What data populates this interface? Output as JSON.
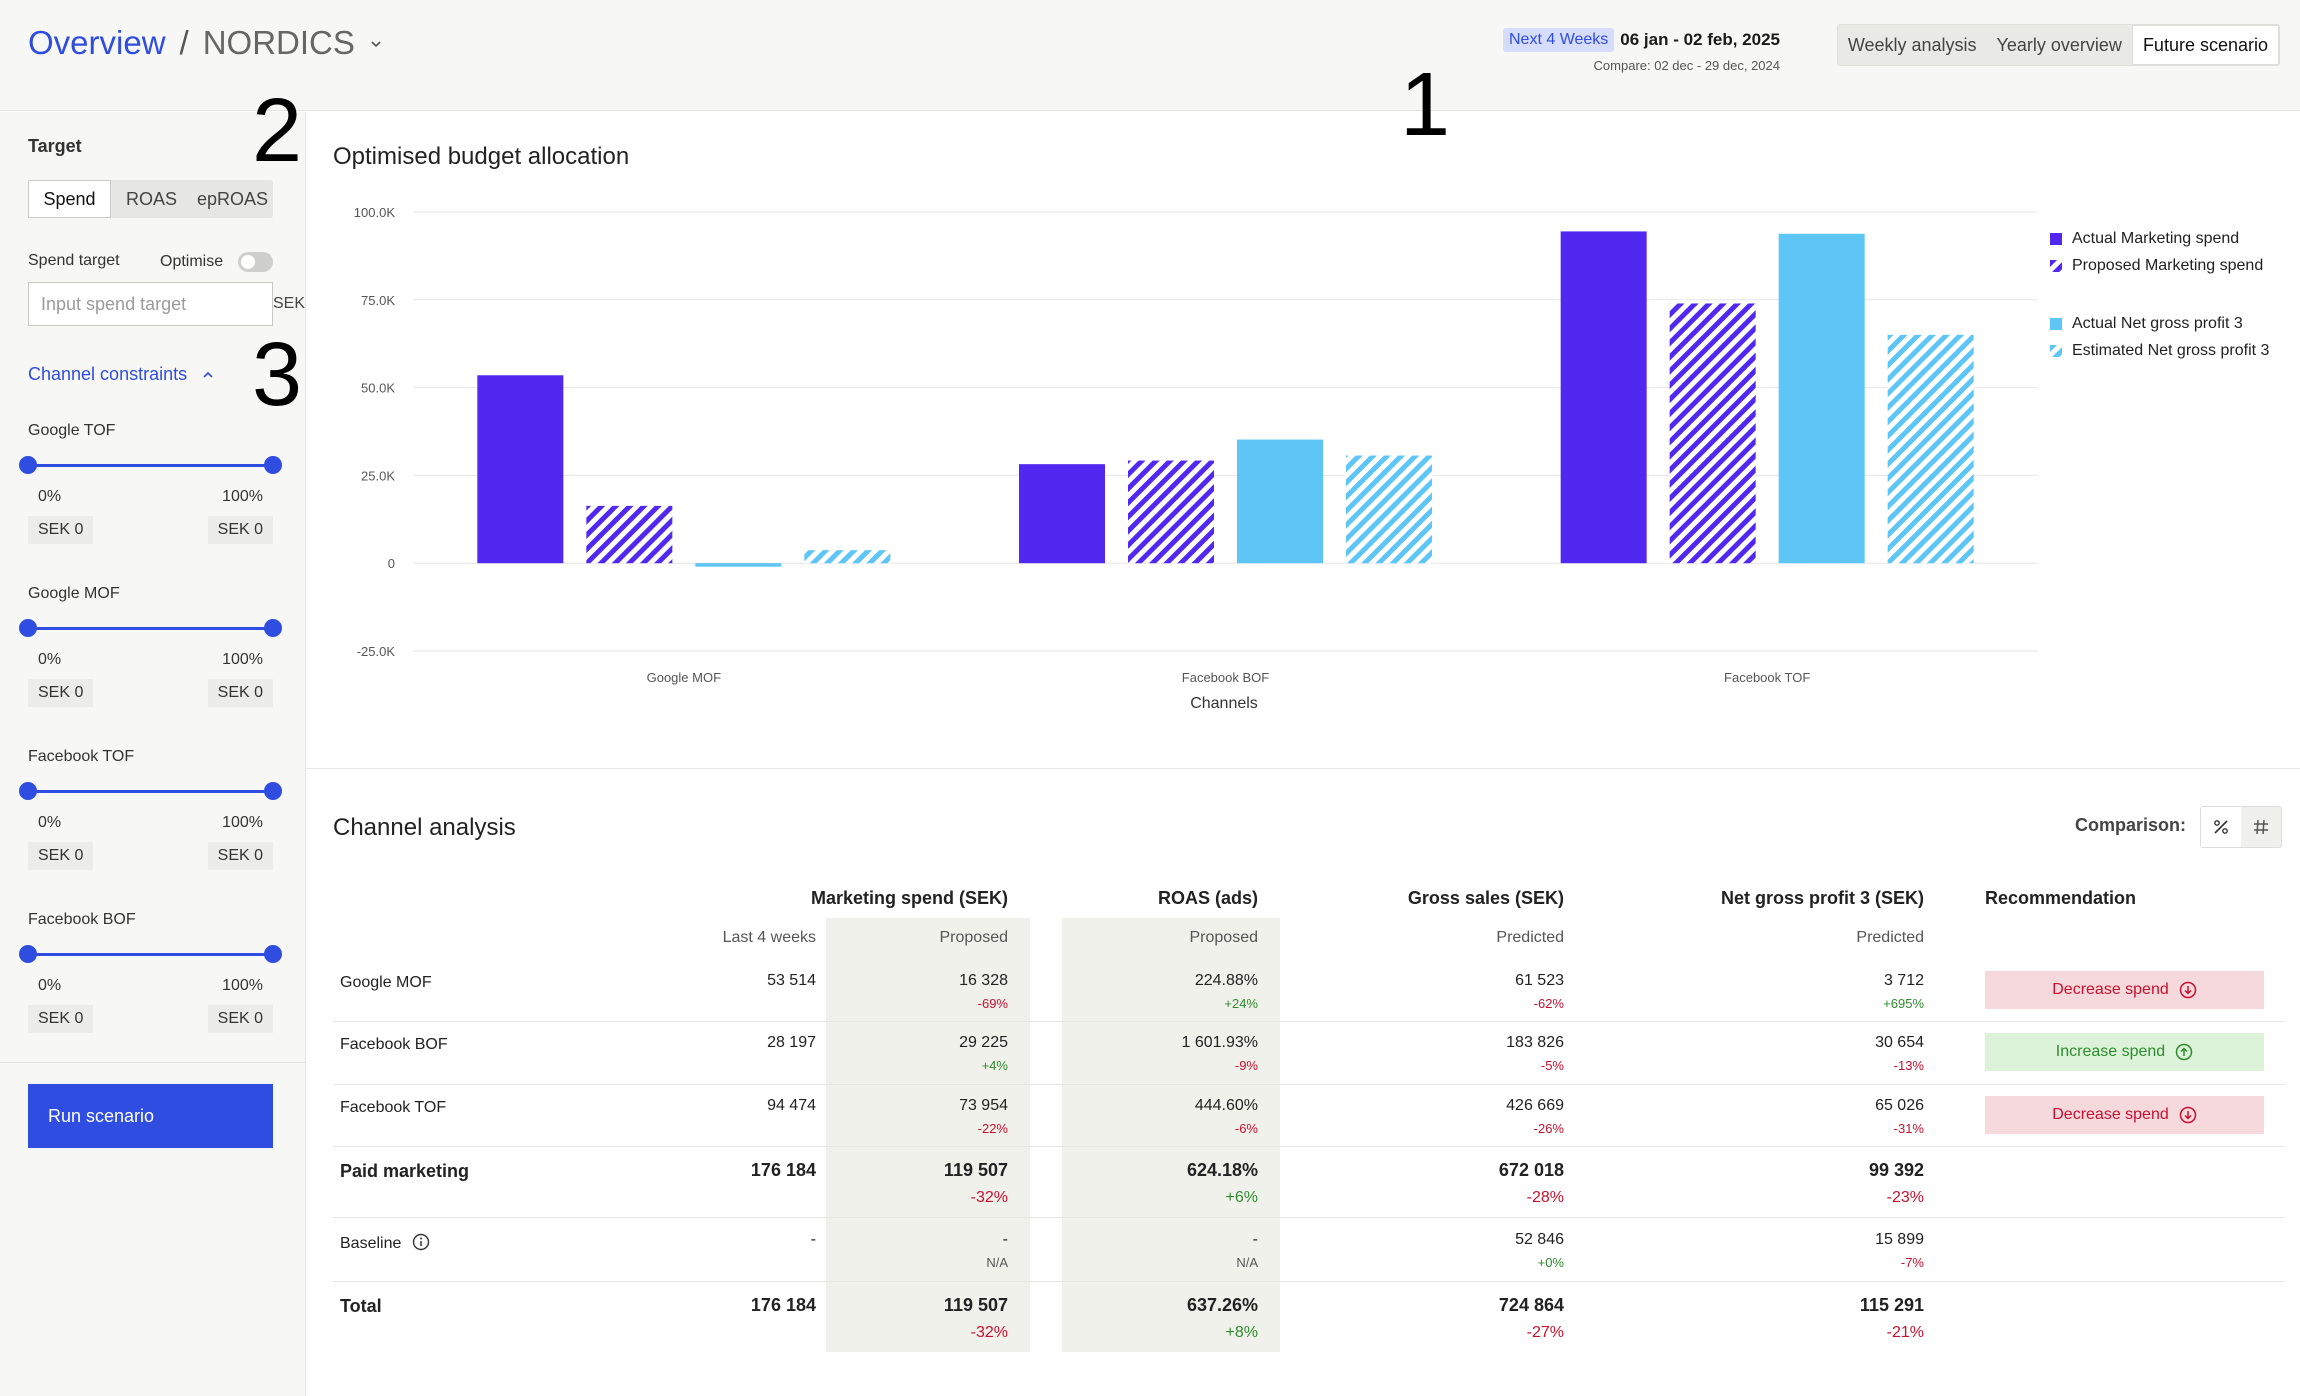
{
  "header": {
    "breadcrumb_root": "Overview",
    "breadcrumb_sep": "/",
    "breadcrumb_current": "NORDICS",
    "period_pill": "Next 4 Weeks",
    "period_range": "06 jan - 02 feb, 2025",
    "compare": "Compare: 02 dec - 29 dec, 2024",
    "view_tabs": [
      "Weekly analysis",
      "Yearly overview",
      "Future scenario"
    ],
    "active_view": "Future scenario"
  },
  "sidebar": {
    "title": "Target",
    "segments": [
      "Spend",
      "ROAS",
      "epROAS"
    ],
    "active_segment": "Spend",
    "spend_target_label": "Spend target",
    "optimise_label": "Optimise",
    "optimise_on": false,
    "spend_input_placeholder": "Input spend target",
    "spend_input_unit": "SEK",
    "constraints_label": "Channel constraints",
    "constraints": [
      {
        "name": "Google TOF",
        "min_pct": "0%",
        "max_pct": "100%",
        "min_sek": "SEK 0",
        "max_sek": "SEK 0"
      },
      {
        "name": "Google MOF",
        "min_pct": "0%",
        "max_pct": "100%",
        "min_sek": "SEK 0",
        "max_sek": "SEK 0"
      },
      {
        "name": "Facebook TOF",
        "min_pct": "0%",
        "max_pct": "100%",
        "min_sek": "SEK 0",
        "max_sek": "SEK 0"
      },
      {
        "name": "Facebook BOF",
        "min_pct": "0%",
        "max_pct": "100%",
        "min_sek": "SEK 0",
        "max_sek": "SEK 0"
      }
    ],
    "run_button": "Run scenario"
  },
  "annotations": {
    "one": "1",
    "two": "2",
    "three": "3"
  },
  "chart": {
    "title": "Optimised budget allocation"
  },
  "chart_data": {
    "type": "bar",
    "title": "Optimised budget allocation",
    "xlabel": "Channels",
    "ylabel": "",
    "categories": [
      "Google MOF",
      "Facebook BOF",
      "Facebook TOF"
    ],
    "yticks": [
      -25000,
      0,
      25000,
      50000,
      75000,
      100000
    ],
    "ytick_labels": [
      "-25.0K",
      "0",
      "25.0K",
      "50.0K",
      "75.0K",
      "100.0K"
    ],
    "ylim": [
      -25000,
      100000
    ],
    "grid": true,
    "legend_position": "right",
    "series": [
      {
        "name": "Actual Marketing spend",
        "color": "#5128ef",
        "pattern": "solid",
        "values": [
          53514,
          28197,
          94474
        ]
      },
      {
        "name": "Proposed Marketing spend",
        "color": "#5128ef",
        "pattern": "hatched",
        "values": [
          16328,
          29225,
          73954
        ]
      },
      {
        "name": "Actual Net gross profit 3",
        "color": "#5ec5f7",
        "pattern": "solid",
        "values": [
          -1000,
          35200,
          93800
        ]
      },
      {
        "name": "Estimated Net gross profit 3",
        "color": "#5ec5f7",
        "pattern": "hatched",
        "values": [
          3712,
          30654,
          65026
        ]
      }
    ]
  },
  "table": {
    "title": "Channel analysis",
    "comparison_label": "Comparison:",
    "headers": {
      "spend": "Marketing spend (SEK)",
      "roas": "ROAS (ads)",
      "gross": "Gross sales (SEK)",
      "ngp": "Net gross profit 3 (SEK)",
      "rec": "Recommendation"
    },
    "subheaders": {
      "last": "Last 4 weeks",
      "proposed": "Proposed",
      "roas_proposed": "Proposed",
      "gross_predicted": "Predicted",
      "ngp_predicted": "Predicted"
    },
    "rows": [
      {
        "name": "Google MOF",
        "last": "53 514",
        "proposed": "16 328",
        "proposed_d": "-69%",
        "roas": "224.88%",
        "roas_d": "+24%",
        "gross": "61 523",
        "gross_d": "-62%",
        "ngp": "3 712",
        "ngp_d": "+695%",
        "rec": "Decrease spend"
      },
      {
        "name": "Facebook BOF",
        "last": "28 197",
        "proposed": "29 225",
        "proposed_d": "+4%",
        "roas": "1 601.93%",
        "roas_d": "-9%",
        "gross": "183 826",
        "gross_d": "-5%",
        "ngp": "30 654",
        "ngp_d": "-13%",
        "rec": "Increase spend"
      },
      {
        "name": "Facebook TOF",
        "last": "94 474",
        "proposed": "73 954",
        "proposed_d": "-22%",
        "roas": "444.60%",
        "roas_d": "-6%",
        "gross": "426 669",
        "gross_d": "-26%",
        "ngp": "65 026",
        "ngp_d": "-31%",
        "rec": "Decrease spend"
      }
    ],
    "paid": {
      "name": "Paid marketing",
      "last": "176 184",
      "proposed": "119 507",
      "proposed_d": "-32%",
      "roas": "624.18%",
      "roas_d": "+6%",
      "gross": "672 018",
      "gross_d": "-28%",
      "ngp": "99 392",
      "ngp_d": "-23%"
    },
    "baseline": {
      "name": "Baseline",
      "last": "-",
      "proposed": "-",
      "proposed_d": "N/A",
      "roas": "-",
      "roas_d": "N/A",
      "gross": "52 846",
      "gross_d": "+0%",
      "ngp": "15 899",
      "ngp_d": "-7%"
    },
    "total": {
      "name": "Total",
      "last": "176 184",
      "proposed": "119 507",
      "proposed_d": "-32%",
      "roas": "637.26%",
      "roas_d": "+8%",
      "gross": "724 864",
      "gross_d": "-27%",
      "ngp": "115 291",
      "ngp_d": "-21%"
    }
  }
}
